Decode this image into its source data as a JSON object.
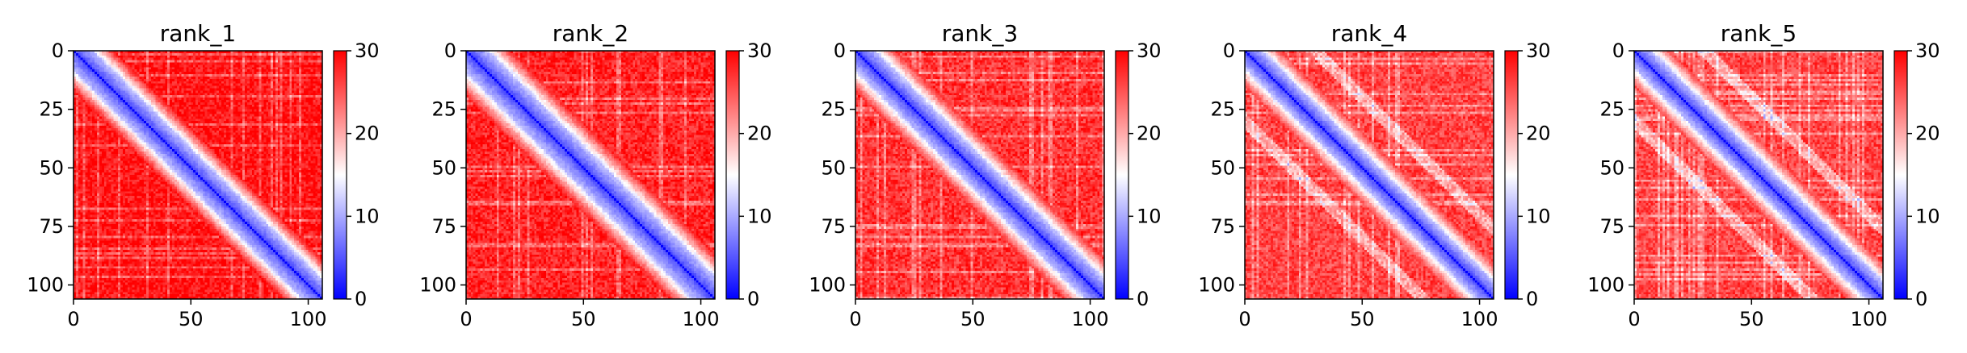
{
  "chart_data": [
    {
      "type": "heatmap",
      "title": "rank_1",
      "n": 106,
      "clim": [
        0,
        30
      ],
      "xticks": [
        0,
        50,
        100
      ],
      "yticks": [
        0,
        25,
        50,
        75,
        100
      ],
      "cbar_ticks": [
        0,
        10,
        20,
        30
      ],
      "colormap": [
        "#0000ff",
        "#ffffff",
        "#ff0000"
      ],
      "diagonal_value": 3,
      "off_diagonal_value": 29,
      "band_width": 9
    },
    {
      "type": "heatmap",
      "title": "rank_2",
      "n": 106,
      "clim": [
        0,
        30
      ],
      "xticks": [
        0,
        50,
        100
      ],
      "yticks": [
        0,
        25,
        50,
        75,
        100
      ],
      "cbar_ticks": [
        0,
        10,
        20,
        30
      ],
      "colormap": [
        "#0000ff",
        "#ffffff",
        "#ff0000"
      ],
      "diagonal_value": 3,
      "off_diagonal_value": 28,
      "band_width": 10
    },
    {
      "type": "heatmap",
      "title": "rank_3",
      "n": 106,
      "clim": [
        0,
        30
      ],
      "xticks": [
        0,
        50,
        100
      ],
      "yticks": [
        0,
        25,
        50,
        75,
        100
      ],
      "cbar_ticks": [
        0,
        10,
        20,
        30
      ],
      "colormap": [
        "#0000ff",
        "#ffffff",
        "#ff0000"
      ],
      "diagonal_value": 3,
      "off_diagonal_value": 27,
      "band_width": 9
    },
    {
      "type": "heatmap",
      "title": "rank_4",
      "n": 106,
      "clim": [
        0,
        30
      ],
      "xticks": [
        0,
        50,
        100
      ],
      "yticks": [
        0,
        25,
        50,
        75,
        100
      ],
      "cbar_ticks": [
        0,
        10,
        20,
        30
      ],
      "colormap": [
        "#0000ff",
        "#ffffff",
        "#ff0000"
      ],
      "diagonal_value": 3,
      "off_diagonal_value": 26,
      "band_width": 8
    },
    {
      "type": "heatmap",
      "title": "rank_5",
      "n": 106,
      "clim": [
        0,
        30
      ],
      "xticks": [
        0,
        50,
        100
      ],
      "yticks": [
        0,
        25,
        50,
        75,
        100
      ],
      "cbar_ticks": [
        0,
        10,
        20,
        30
      ],
      "colormap": [
        "#0000ff",
        "#ffffff",
        "#ff0000"
      ],
      "diagonal_value": 3,
      "off_diagonal_value": 26,
      "band_width": 8
    }
  ]
}
